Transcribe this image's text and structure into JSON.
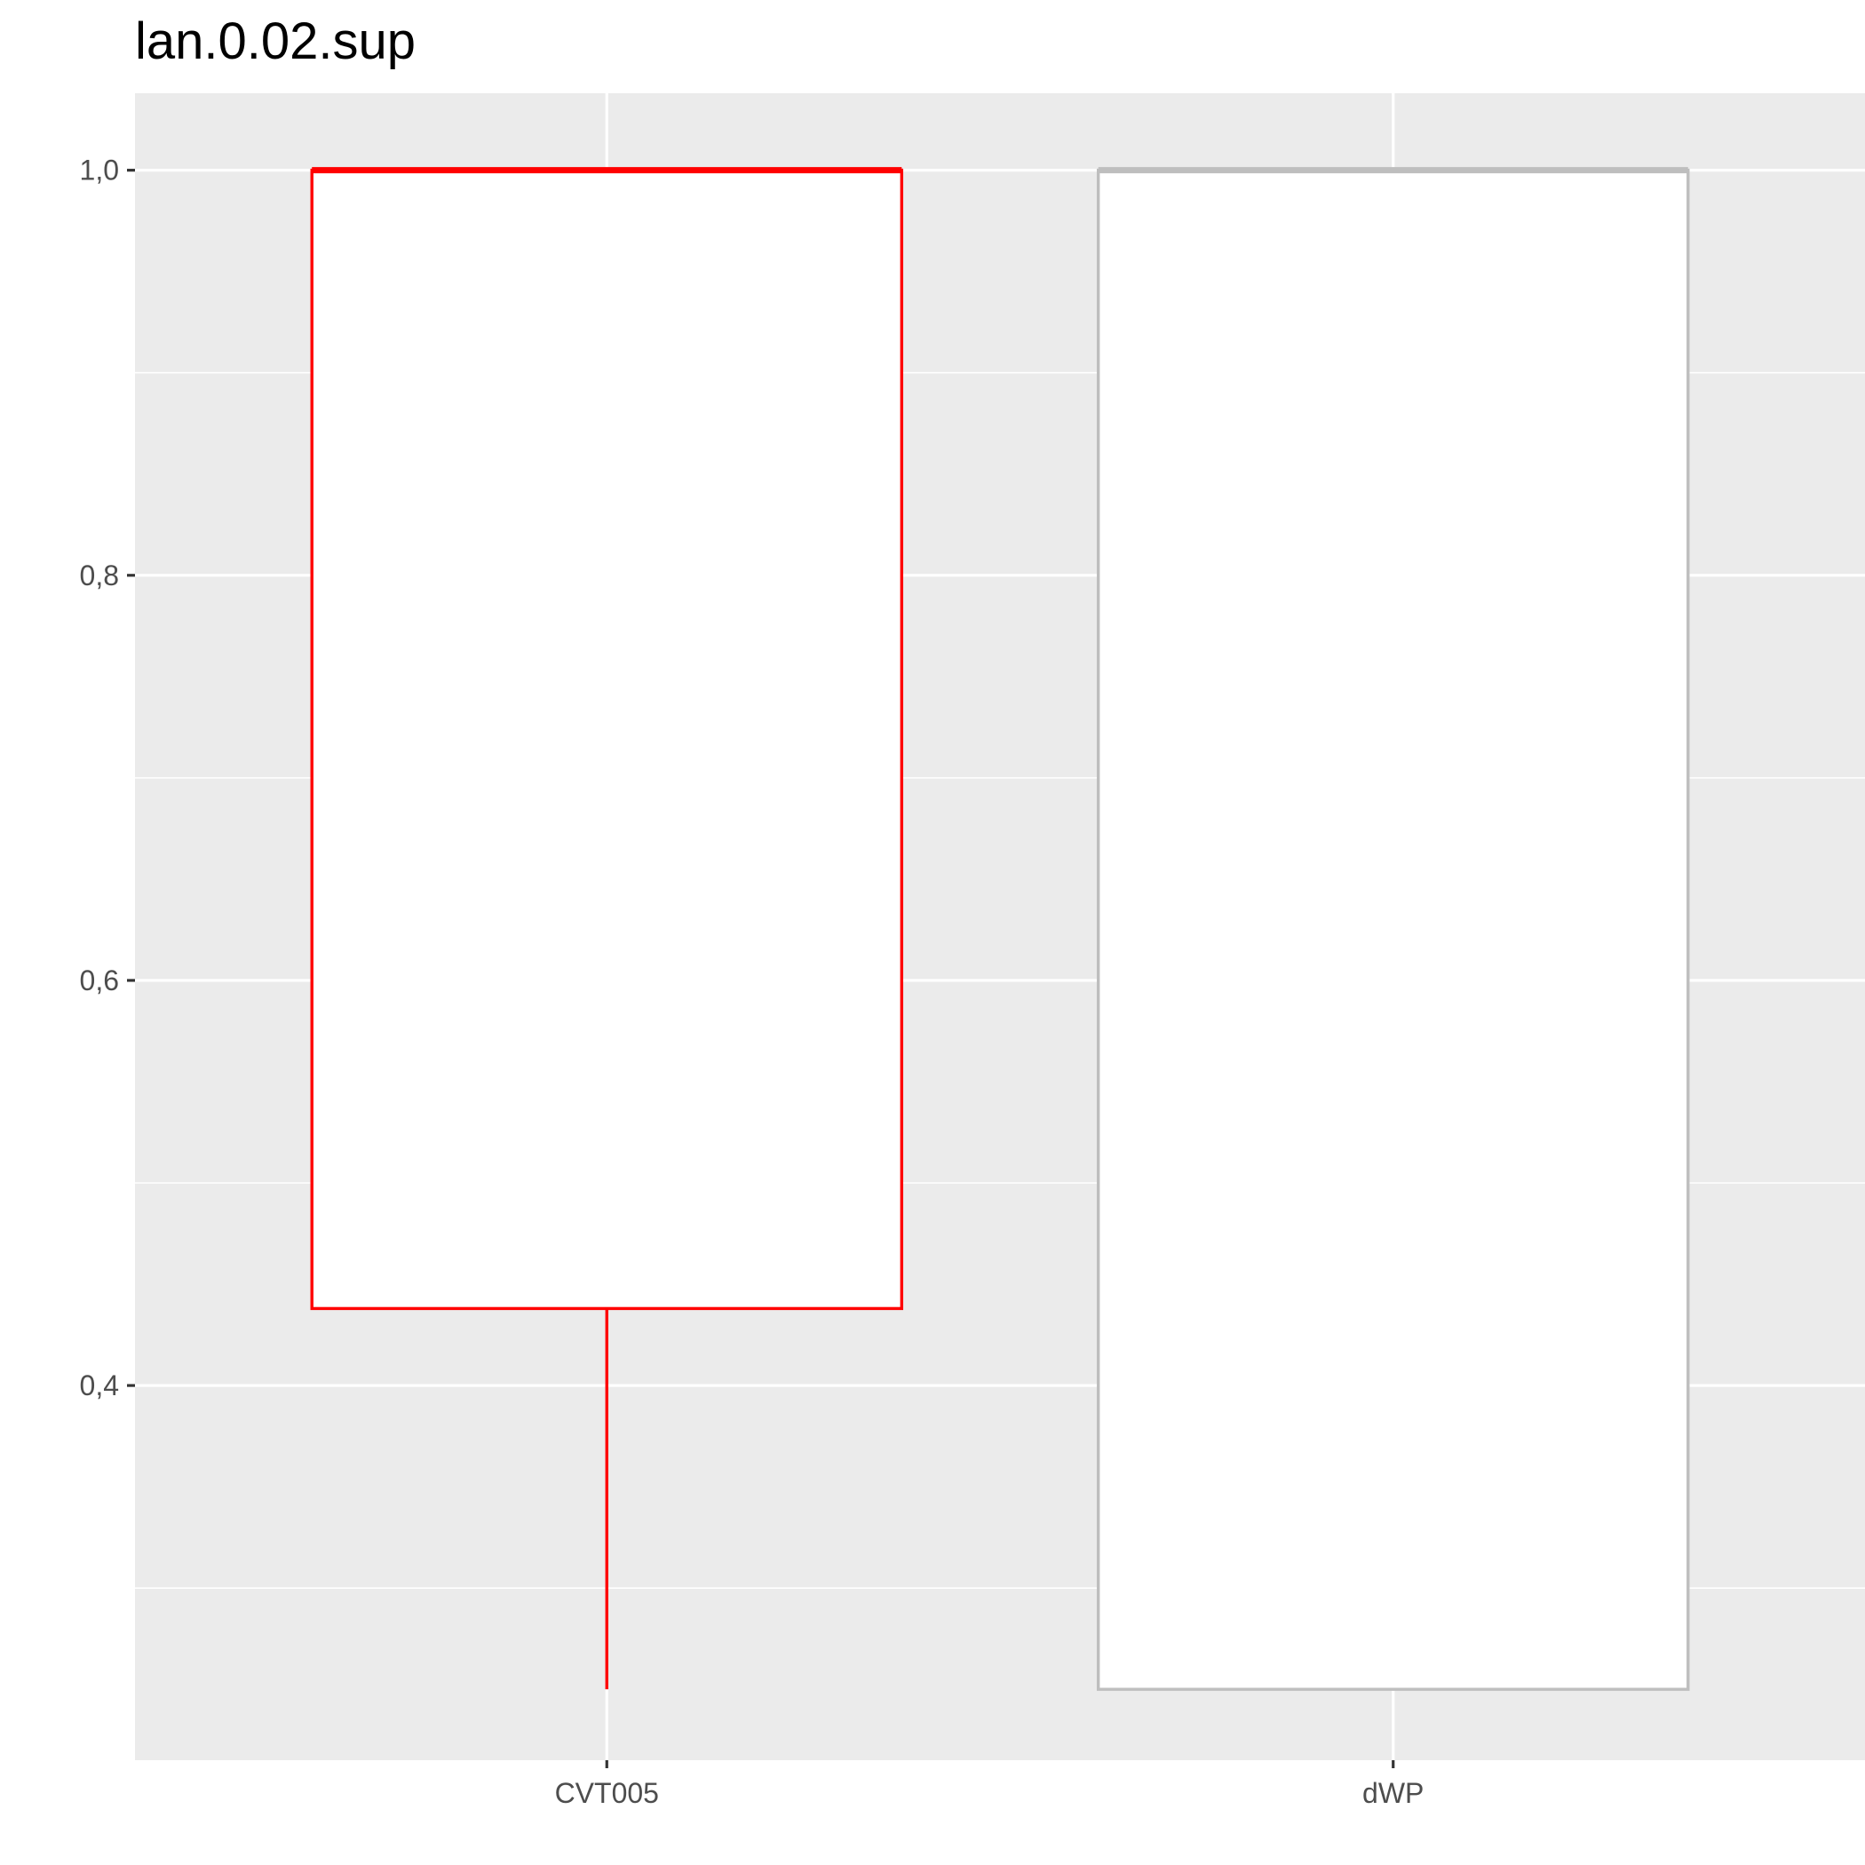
{
  "chart_data": {
    "type": "boxplot",
    "title": "lan.0.02.sup",
    "xlabel": "",
    "ylabel": "",
    "categories": [
      "CVT005",
      "dWP"
    ],
    "ylim": [
      0.215,
      1.038
    ],
    "y_ticks": [
      {
        "value": 0.4,
        "label": "0,4"
      },
      {
        "value": 0.6,
        "label": "0,6"
      },
      {
        "value": 0.8,
        "label": "0,8"
      },
      {
        "value": 1.0,
        "label": "1,0"
      }
    ],
    "y_minor_ticks": [
      0.3,
      0.5,
      0.7,
      0.9
    ],
    "grid": true,
    "panel_background": "#ebebeb",
    "grid_color": "#ffffff",
    "boxes": [
      {
        "category": "CVT005",
        "min": 0.25,
        "q1": 0.438,
        "median": 1.0,
        "q3": 1.0,
        "max": 1.0,
        "color": "#ff0000"
      },
      {
        "category": "dWP",
        "min": 0.25,
        "q1": 0.25,
        "median": 1.0,
        "q3": 1.0,
        "max": 1.0,
        "color": "#bebebe"
      }
    ]
  }
}
